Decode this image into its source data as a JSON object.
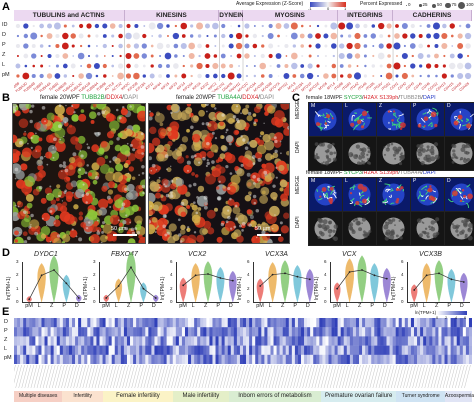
{
  "panels": {
    "a": "A",
    "b": "B",
    "c": "C",
    "d": "D",
    "e": "E"
  },
  "panelA": {
    "families": [
      {
        "name": "TUBULINS and ACTINS",
        "count": 14
      },
      {
        "name": "KINESINS",
        "count": 12
      },
      {
        "name": "DYNEINS",
        "count": 3
      },
      {
        "name": "MYOSINS",
        "count": 12
      },
      {
        "name": "INTEGRINS",
        "count": 7
      },
      {
        "name": "CADHERINS",
        "count": 10
      }
    ],
    "stages": [
      "ID",
      "D",
      "P",
      "Z",
      "L",
      "pM"
    ],
    "genes": [
      "TUBB8",
      "TUBA3D",
      "TUBB4B",
      "TUBB3",
      "TUBA4A",
      "TUBB1",
      "TUBB2B",
      "TUBA1C",
      "TUBA3C",
      "TUBA1B",
      "TUBB4A",
      "TUBB6",
      "ACTL8",
      "ACTG2",
      "KIF2C",
      "KIF20B",
      "KIF18A",
      "KIF11",
      "KIF4A",
      "KIF15",
      "KIF23",
      "KIF14",
      "KIF20A",
      "KIF2A",
      "KIF22",
      "KIFC1",
      "DYNC1H1",
      "DNAH5",
      "DNAH11",
      "MYO1C",
      "MYO3A",
      "MYO5B",
      "MYO9B",
      "MYO7A",
      "MYH11",
      "MYL9",
      "MYO18A",
      "MYO10",
      "MYO1E",
      "MYO6",
      "MYL6",
      "ITGB8",
      "ITGB3",
      "ITGA2",
      "ITGA6",
      "ITGB5",
      "ITGAV",
      "ITGB1",
      "CDH1",
      "CDH2",
      "CDH3",
      "CDH5",
      "CDH6",
      "CDH11",
      "CDH13",
      "CDH15",
      "CDH18",
      "CDH26"
    ],
    "legend": {
      "expr_title": "Average Expression (Z-Score)",
      "expr_ticks": [
        "-1",
        "0",
        "1"
      ],
      "pct_title": "Percent Expressed",
      "pct_ticks": [
        "0",
        "25",
        "50",
        "75",
        "100"
      ]
    }
  },
  "panelB": {
    "left": {
      "prefix": "female 20WPF ",
      "ch1": "TUBB2B",
      "ch2": "DDX4",
      "ch3": "DAPI",
      "scale": "50 µm"
    },
    "right": {
      "prefix": "female 20WPF ",
      "ch1": "TUBA4A",
      "ch2": "DDX4",
      "ch3": "DAPI",
      "scale": "50 µm"
    }
  },
  "panelC": {
    "top": {
      "prefix": "female 18WPF ",
      "ch1": "SYCP3",
      "ch2": "H2AX S139ph",
      "ch3": "TUBB2B",
      "ch4": "DAPI"
    },
    "bottom": {
      "prefix": "female 18WPF ",
      "ch1": "SYCP3",
      "ch2": "H2AX S139ph",
      "ch3": "TUBA4A",
      "ch4": "DAPI"
    },
    "row_labels": [
      "MERGE",
      "DAPI",
      "MERGE",
      "DAPI"
    ],
    "stage_labels_top": [
      "M",
      "L",
      "Z",
      "P",
      "D"
    ],
    "stage_labels_bottom": [
      "M",
      "L",
      "Z",
      "P",
      "D"
    ]
  },
  "panelD": {
    "ylabel": "ln(TPM+1)",
    "x": [
      "pM",
      "L",
      "Z",
      "P",
      "D"
    ],
    "plots": [
      {
        "gene": "DYDC1",
        "yticks": [
          "0",
          "1",
          "2",
          "3"
        ],
        "ymax": 3,
        "means": [
          0.2,
          2.0,
          2.4,
          1.4,
          0.3
        ]
      },
      {
        "gene": "FBXO47",
        "yticks": [
          "0",
          "1",
          "2",
          "3"
        ],
        "ymax": 3,
        "means": [
          0.3,
          1.2,
          2.6,
          1.0,
          0.3
        ]
      },
      {
        "gene": "VCX2",
        "yticks": [
          "0",
          "2",
          "4",
          "6"
        ],
        "ymax": 6,
        "means": [
          2.5,
          4.0,
          4.2,
          3.6,
          3.2
        ]
      },
      {
        "gene": "VCX3A",
        "yticks": [
          "0",
          "2",
          "4",
          "6"
        ],
        "ymax": 6,
        "means": [
          2.4,
          4.1,
          4.3,
          3.8,
          3.4
        ]
      },
      {
        "gene": "VCX",
        "yticks": [
          "0",
          "2",
          "4",
          "6"
        ],
        "ymax": 6,
        "means": [
          2.0,
          4.5,
          4.8,
          4.0,
          3.5
        ]
      },
      {
        "gene": "VCX3B",
        "yticks": [
          "0",
          "2",
          "4",
          "6"
        ],
        "ymax": 6,
        "means": [
          1.8,
          4.0,
          4.3,
          3.4,
          3.0
        ]
      }
    ]
  },
  "panelE": {
    "rows": [
      "D",
      "P",
      "Z",
      "L",
      "pM"
    ],
    "legend_title": "ln(TPM+1)",
    "legend_ticks": [
      "0",
      "2",
      "4",
      "6"
    ],
    "categories": [
      {
        "name": "Multiple diseases",
        "color": "#f6cfc4",
        "width": 50
      },
      {
        "name": "Infertility",
        "color": "#fbe2cf",
        "width": 42
      },
      {
        "name": "Female infertility",
        "color": "#fbf3c6",
        "width": 72
      },
      {
        "name": "Male infertility",
        "color": "#e4efc8",
        "width": 58
      },
      {
        "name": "Inborn errors of metabolism",
        "color": "#d9edd2",
        "width": 95
      },
      {
        "name": "Premature ovarian failure",
        "color": "#d6ecef",
        "width": 78
      },
      {
        "name": "Turner syndrome",
        "color": "#cfe3f3",
        "width": 50
      },
      {
        "name": "Azoospermia",
        "color": "#e0e4f5",
        "width": 28
      }
    ]
  }
}
